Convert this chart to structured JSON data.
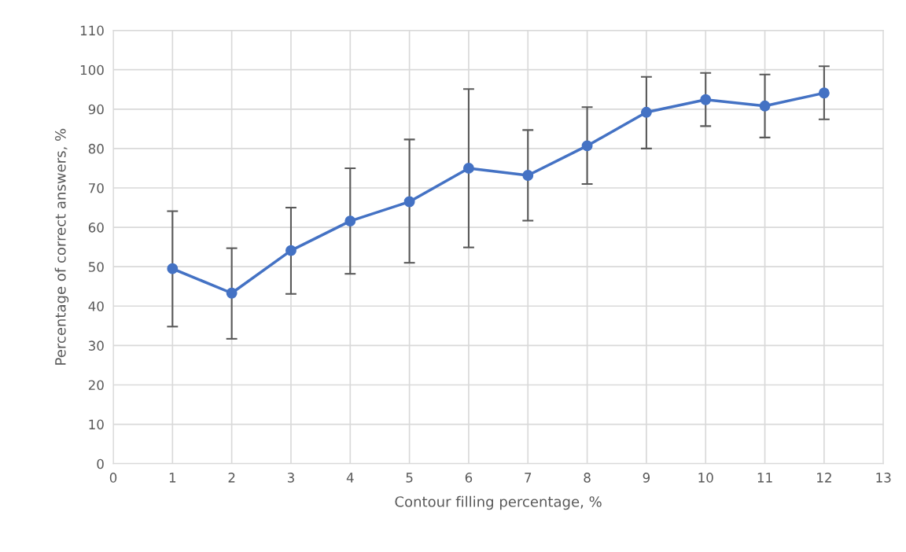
{
  "chart_data": {
    "type": "line",
    "xlabel": "Contour filling percentage, %",
    "ylabel": "Percentage of correct answers, %",
    "x": [
      1,
      2,
      3,
      4,
      5,
      6,
      7,
      8,
      9,
      10,
      11,
      12
    ],
    "series": [
      {
        "color": "#4472c4",
        "values": [
          49.5,
          43.3,
          54.1,
          61.6,
          66.5,
          75.0,
          73.2,
          80.7,
          89.2,
          92.4,
          90.8,
          94.1
        ],
        "errors": [
          [
            34.8,
            64.1
          ],
          [
            31.7,
            54.7
          ],
          [
            43.1,
            65.0
          ],
          [
            48.2,
            75.0
          ],
          [
            51.0,
            82.3
          ],
          [
            54.9,
            95.1
          ],
          [
            61.7,
            84.7
          ],
          [
            71.0,
            90.5
          ],
          [
            80.0,
            98.2
          ],
          [
            85.7,
            99.2
          ],
          [
            82.8,
            98.8
          ],
          [
            87.4,
            100.9
          ]
        ]
      }
    ],
    "xlim": [
      0,
      13
    ],
    "xticks": [
      0,
      1,
      2,
      3,
      4,
      5,
      6,
      7,
      8,
      9,
      10,
      11,
      12,
      13
    ],
    "ylim": [
      0,
      110
    ],
    "yticks": [
      0,
      10,
      20,
      30,
      40,
      50,
      60,
      70,
      80,
      90,
      100,
      110
    ],
    "grid": true,
    "marker": "circle",
    "line_style": "solid"
  }
}
